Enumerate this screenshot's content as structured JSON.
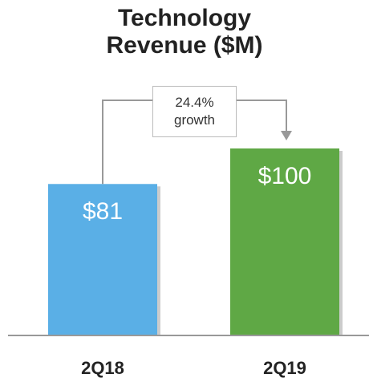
{
  "chart_data": {
    "type": "bar",
    "title": "Technology Revenue ($M)",
    "categories": [
      "2Q18",
      "2Q19"
    ],
    "values": [
      81,
      100
    ],
    "value_labels": [
      "$81",
      "$100"
    ],
    "colors": [
      "#5aafe6",
      "#5fa845"
    ],
    "annotation": "24.4% growth"
  }
}
